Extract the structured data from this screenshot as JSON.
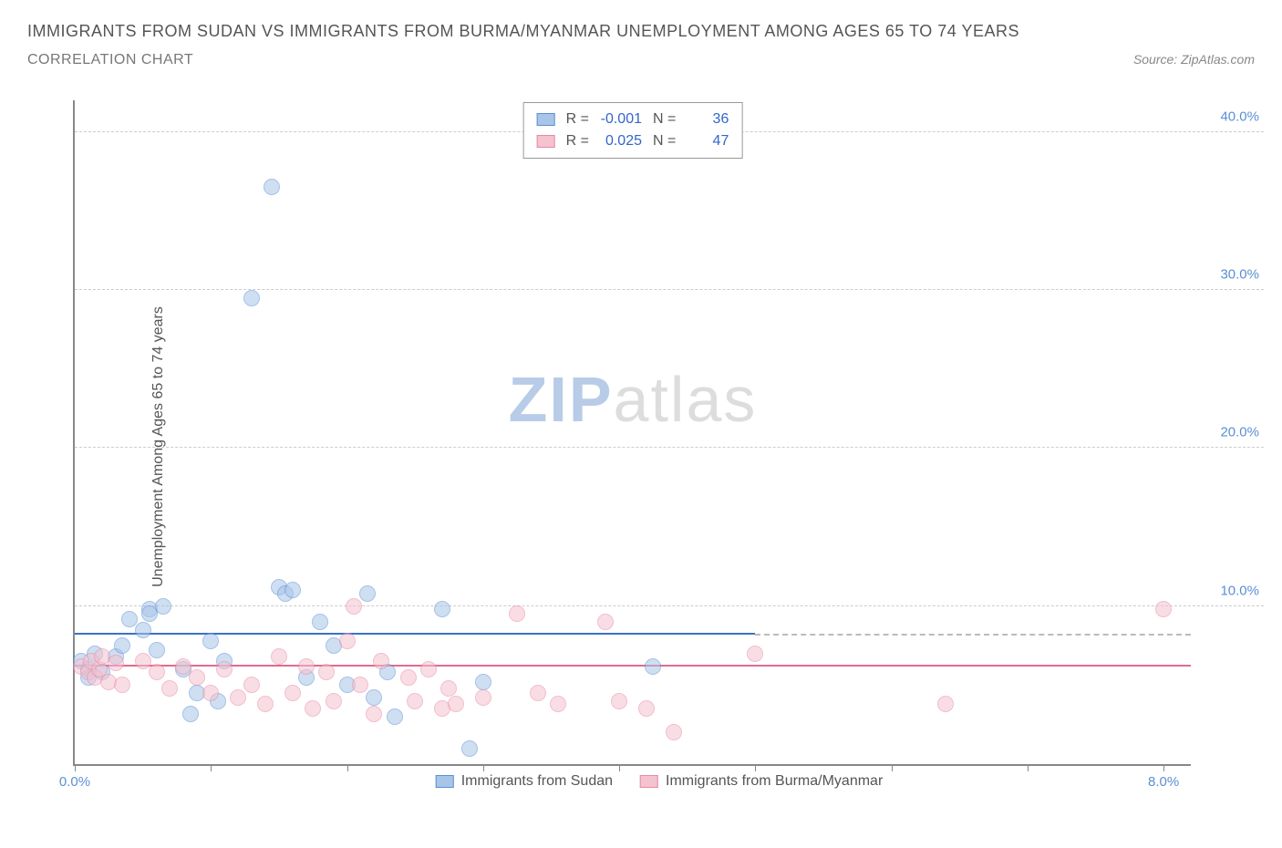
{
  "header": {
    "title": "IMMIGRANTS FROM SUDAN VS IMMIGRANTS FROM BURMA/MYANMAR UNEMPLOYMENT AMONG AGES 65 TO 74 YEARS",
    "subtitle": "CORRELATION CHART",
    "source": "Source: ZipAtlas.com"
  },
  "chart": {
    "type": "scatter",
    "y_label": "Unemployment Among Ages 65 to 74 years",
    "xlim": [
      0,
      8.2
    ],
    "ylim": [
      0,
      42
    ],
    "y_ticks": [
      10,
      20,
      30,
      40
    ],
    "y_tick_labels": [
      "10.0%",
      "20.0%",
      "30.0%",
      "40.0%"
    ],
    "x_ticks": [
      0,
      1,
      2,
      3,
      4,
      5,
      6,
      7,
      8
    ],
    "x_tick_labels": [
      "0.0%",
      "",
      "",
      "",
      "",
      "",
      "",
      "",
      "8.0%"
    ],
    "background_color": "#ffffff",
    "grid_color": "#cccccc",
    "axis_color": "#888888",
    "point_radius": 9,
    "point_opacity": 0.55,
    "series": [
      {
        "name": "Immigrants from Sudan",
        "fill_color": "#a8c5e8",
        "stroke_color": "#5b8fd6",
        "line_color": "#3b71c6",
        "r_value": "-0.001",
        "n_value": "36",
        "trend": {
          "y_start": 8.2,
          "y_end": 8.15,
          "x_start": 0,
          "x_end": 5.0,
          "extend_to": 8.2
        },
        "points": [
          [
            0.05,
            6.5
          ],
          [
            0.1,
            6.0
          ],
          [
            0.1,
            5.5
          ],
          [
            0.15,
            7.0
          ],
          [
            0.2,
            5.8
          ],
          [
            0.3,
            6.8
          ],
          [
            0.35,
            7.5
          ],
          [
            0.4,
            9.2
          ],
          [
            0.5,
            8.5
          ],
          [
            0.55,
            9.8
          ],
          [
            0.6,
            7.2
          ],
          [
            0.65,
            10.0
          ],
          [
            0.55,
            9.5
          ],
          [
            0.8,
            6.0
          ],
          [
            0.85,
            3.2
          ],
          [
            0.9,
            4.5
          ],
          [
            1.0,
            7.8
          ],
          [
            1.05,
            4.0
          ],
          [
            1.1,
            6.5
          ],
          [
            1.3,
            29.5
          ],
          [
            1.45,
            36.5
          ],
          [
            1.5,
            11.2
          ],
          [
            1.55,
            10.8
          ],
          [
            1.6,
            11.0
          ],
          [
            1.7,
            5.5
          ],
          [
            1.8,
            9.0
          ],
          [
            1.9,
            7.5
          ],
          [
            2.0,
            5.0
          ],
          [
            2.15,
            10.8
          ],
          [
            2.2,
            4.2
          ],
          [
            2.3,
            5.8
          ],
          [
            2.35,
            3.0
          ],
          [
            2.7,
            9.8
          ],
          [
            2.9,
            1.0
          ],
          [
            3.0,
            5.2
          ],
          [
            4.25,
            6.2
          ]
        ]
      },
      {
        "name": "Immigrants from Burma/Myanmar",
        "fill_color": "#f5c2cf",
        "stroke_color": "#e88aa3",
        "line_color": "#e06b8f",
        "r_value": "0.025",
        "n_value": "47",
        "trend": {
          "y_start": 6.0,
          "y_end": 6.3,
          "x_start": 0,
          "x_end": 8.2
        },
        "points": [
          [
            0.05,
            6.2
          ],
          [
            0.1,
            5.8
          ],
          [
            0.12,
            6.5
          ],
          [
            0.15,
            5.5
          ],
          [
            0.18,
            6.0
          ],
          [
            0.2,
            6.8
          ],
          [
            0.25,
            5.2
          ],
          [
            0.3,
            6.4
          ],
          [
            0.35,
            5.0
          ],
          [
            0.5,
            6.5
          ],
          [
            0.6,
            5.8
          ],
          [
            0.7,
            4.8
          ],
          [
            0.8,
            6.2
          ],
          [
            0.9,
            5.5
          ],
          [
            1.0,
            4.5
          ],
          [
            1.1,
            6.0
          ],
          [
            1.2,
            4.2
          ],
          [
            1.3,
            5.0
          ],
          [
            1.4,
            3.8
          ],
          [
            1.5,
            6.8
          ],
          [
            1.6,
            4.5
          ],
          [
            1.7,
            6.2
          ],
          [
            1.75,
            3.5
          ],
          [
            1.85,
            5.8
          ],
          [
            1.9,
            4.0
          ],
          [
            2.0,
            7.8
          ],
          [
            2.05,
            10.0
          ],
          [
            2.1,
            5.0
          ],
          [
            2.2,
            3.2
          ],
          [
            2.25,
            6.5
          ],
          [
            2.45,
            5.5
          ],
          [
            2.5,
            4.0
          ],
          [
            2.6,
            6.0
          ],
          [
            2.7,
            3.5
          ],
          [
            2.75,
            4.8
          ],
          [
            2.8,
            3.8
          ],
          [
            3.0,
            4.2
          ],
          [
            3.25,
            9.5
          ],
          [
            3.4,
            4.5
          ],
          [
            3.55,
            3.8
          ],
          [
            3.9,
            9.0
          ],
          [
            4.0,
            4.0
          ],
          [
            4.2,
            3.5
          ],
          [
            4.4,
            2.0
          ],
          [
            5.0,
            7.0
          ],
          [
            6.4,
            3.8
          ],
          [
            8.0,
            9.8
          ]
        ]
      }
    ]
  },
  "watermark": {
    "part1": "ZIP",
    "part2": "atlas"
  },
  "legend_labels": {
    "r": "R =",
    "n": "N ="
  }
}
